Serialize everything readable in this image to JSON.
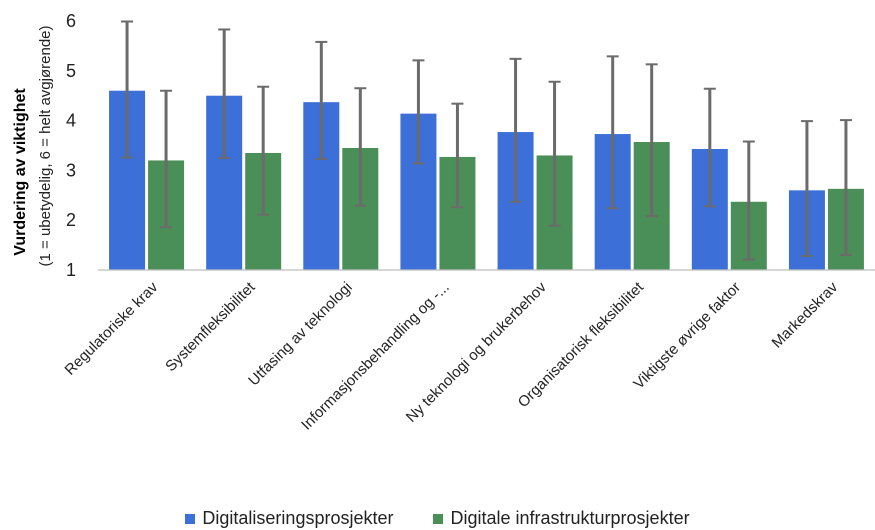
{
  "chart_data": {
    "type": "bar",
    "ylabel_main": "Vurdering av viktighet",
    "ylabel_sub": "(1 = ubetydelig, 6 = helt avgjørende)",
    "ylim": [
      1,
      6
    ],
    "yticks": [
      "1",
      "2",
      "3",
      "4",
      "5",
      "6"
    ],
    "categories": [
      "Regulatoriske krav",
      "Systemfleksibilitet",
      "Utfasing av teknologi",
      "Informasjonsbehandling og -...",
      "Ny teknologi og brukerbehov",
      "Organisatorisk fleksibilitet",
      "Viktigste øvrige faktor",
      "Markedskrav"
    ],
    "series": [
      {
        "name": "Digitaliseringsprosjekter",
        "color": "#3c6fd8",
        "values": [
          4.6,
          4.5,
          4.37,
          4.14,
          3.77,
          3.73,
          3.43,
          2.6
        ],
        "err_low": [
          3.26,
          3.25,
          3.23,
          3.14,
          2.37,
          2.24,
          2.28,
          1.28
        ],
        "err_high": [
          5.99,
          5.83,
          5.58,
          5.21,
          5.24,
          5.29,
          4.64,
          3.99
        ]
      },
      {
        "name": "Digitale infrastrukturprosjekter",
        "color": "#4a8f57",
        "values": [
          3.2,
          3.35,
          3.45,
          3.27,
          3.3,
          3.57,
          2.37,
          2.63
        ],
        "err_low": [
          1.86,
          2.11,
          2.29,
          2.26,
          1.89,
          2.08,
          1.21,
          1.3
        ],
        "err_high": [
          4.6,
          4.68,
          4.65,
          4.34,
          4.78,
          5.13,
          3.58,
          4.01
        ]
      }
    ],
    "grid": false,
    "legend_position": "bottom"
  }
}
